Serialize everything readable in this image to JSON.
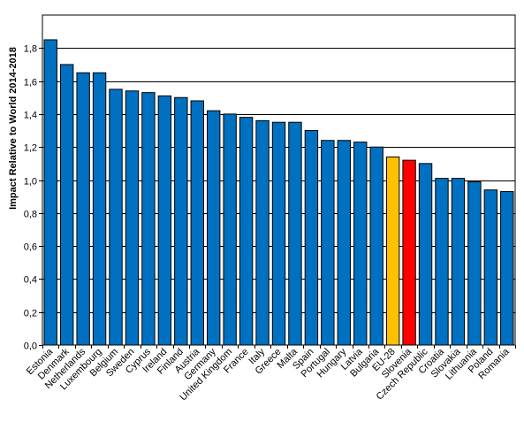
{
  "chart_data": {
    "type": "bar",
    "title": "",
    "xlabel": "",
    "ylabel": "Impact Relative to World 2014-2018",
    "ylim": [
      0,
      2.0
    ],
    "yticks": [
      "0,0",
      "0,2",
      "0,4",
      "0,6",
      "0,8",
      "1,0",
      "1,2",
      "1,4",
      "1,6",
      "1,8"
    ],
    "ytick_values": [
      0,
      0.2,
      0.4,
      0.6,
      0.8,
      1.0,
      1.2,
      1.4,
      1.6,
      1.8
    ],
    "grid": true,
    "legend": "none",
    "categories": [
      "Estonia",
      "Denmark",
      "Netherlands",
      "Luxembourg",
      "Belgium",
      "Sweden",
      "Cyprus",
      "Ireland",
      "Finland",
      "Austria",
      "Germany",
      "United Kingdom",
      "France",
      "Italy",
      "Greece",
      "Malta",
      "Spain",
      "Portugal",
      "Hungary",
      "Latvia",
      "Bulgaria",
      "EU-28",
      "Slovenia",
      "Czech Republic",
      "Croatia",
      "Slovakia",
      "Lithuania",
      "Poland",
      "Romania"
    ],
    "values": [
      1.85,
      1.7,
      1.65,
      1.65,
      1.55,
      1.54,
      1.53,
      1.51,
      1.5,
      1.48,
      1.42,
      1.4,
      1.38,
      1.36,
      1.35,
      1.35,
      1.3,
      1.24,
      1.24,
      1.23,
      1.2,
      1.14,
      1.12,
      1.1,
      1.01,
      1.01,
      0.99,
      0.94,
      0.93
    ],
    "colors": {
      "default": "#0070C0",
      "highlight": {
        "EU-28": "#FFC000",
        "Slovenia": "#FF0000"
      },
      "grid": "#000000",
      "bar_stroke": "#000000"
    }
  }
}
